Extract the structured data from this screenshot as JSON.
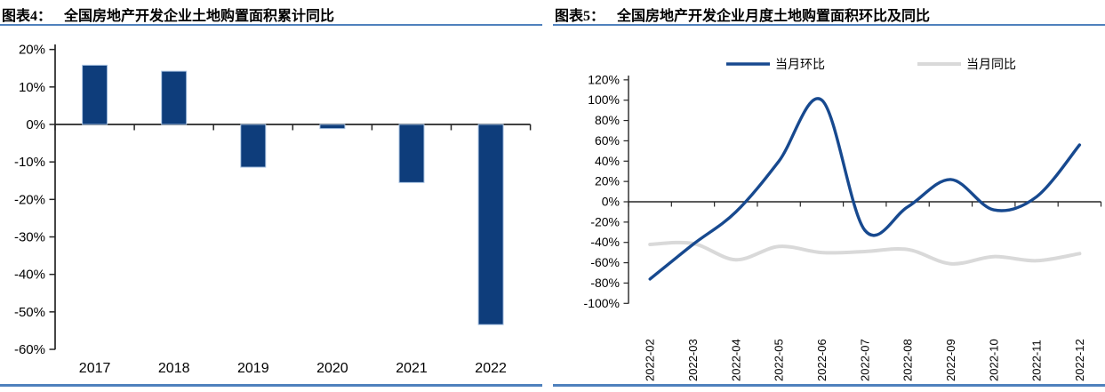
{
  "style": {
    "background": "#ffffff",
    "accent_rule_color": "#4f81bd",
    "axis_color": "#262626",
    "text_color": "#000000",
    "bar_fill": "#0e3d7b",
    "bar_stroke": "#a9c3e2"
  },
  "chart_data": [
    {
      "type": "bar",
      "figure_label": "图表4：",
      "title": "全国房地产开发企业土地购置面积累计同比",
      "categories": [
        "2017",
        "2018",
        "2019",
        "2020",
        "2021",
        "2022"
      ],
      "values": [
        15.8,
        14.2,
        -11.4,
        -1.1,
        -15.5,
        -53.4
      ],
      "unit": "%",
      "xlabel": "",
      "ylabel": "",
      "ylim": [
        -60,
        20
      ],
      "ytick_step": 10,
      "grid": false,
      "bar_color": "#0e3d7b"
    },
    {
      "type": "line",
      "figure_label": "图表5：",
      "title": "全国房地产开发企业月度土地购置面积环比及同比",
      "categories": [
        "2022-02",
        "2022-03",
        "2022-04",
        "2022-05",
        "2022-06",
        "2022-07",
        "2022-08",
        "2022-09",
        "2022-10",
        "2022-11",
        "2022-12"
      ],
      "series": [
        {
          "name": "当月环比",
          "color": "#17498f",
          "stroke_width": 3.4,
          "values": [
            -76,
            -42,
            -10,
            40,
            100,
            -28,
            -5,
            22,
            -8,
            5,
            56
          ]
        },
        {
          "name": "当月同比",
          "color": "#d9d9d9",
          "stroke_width": 4,
          "values": [
            -42,
            -41,
            -57,
            -44,
            -50,
            -49,
            -47,
            -61,
            -54,
            -58,
            -51
          ]
        }
      ],
      "unit": "%",
      "xlabel": "",
      "ylabel": "",
      "ylim": [
        -100,
        120
      ],
      "ytick_step": 20,
      "grid": false,
      "smooth": true,
      "legend_position": "top"
    }
  ]
}
